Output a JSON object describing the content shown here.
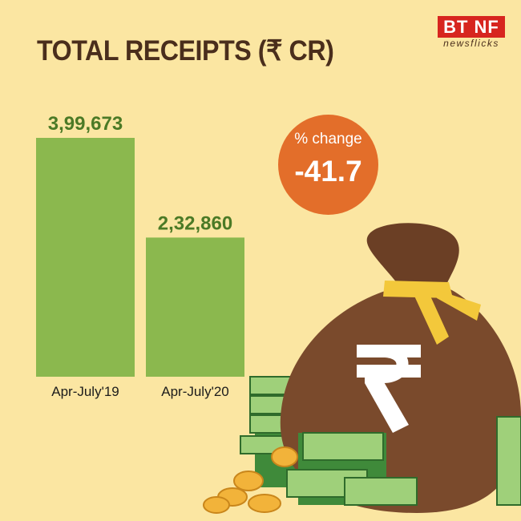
{
  "title": "TOTAL RECEIPTS (₹ CR)",
  "logo": {
    "main": "BT NF",
    "sub": "newsflicks"
  },
  "badge": {
    "label": "% change",
    "value": "-41.7"
  },
  "colors": {
    "background": "#fbe6a2",
    "bar": "#8bb84e",
    "value_text": "#4b7a26",
    "title_text": "#4a2e1c",
    "badge": "#e36e2a",
    "logo_red": "#d7251f"
  },
  "chart_data": {
    "type": "bar",
    "title": "TOTAL RECEIPTS (₹ CR)",
    "categories": [
      "Apr-July'19",
      "Apr-July'20"
    ],
    "values": [
      399673,
      232860
    ],
    "value_labels": [
      "3,99,673",
      "2,32,860"
    ],
    "xlabel": "",
    "ylabel": "",
    "ylim": [
      0,
      399673
    ],
    "grid": false,
    "annotation": {
      "label": "% change",
      "value": -41.7
    }
  },
  "illustration": {
    "icon": "money-bag-rupee-icon"
  }
}
